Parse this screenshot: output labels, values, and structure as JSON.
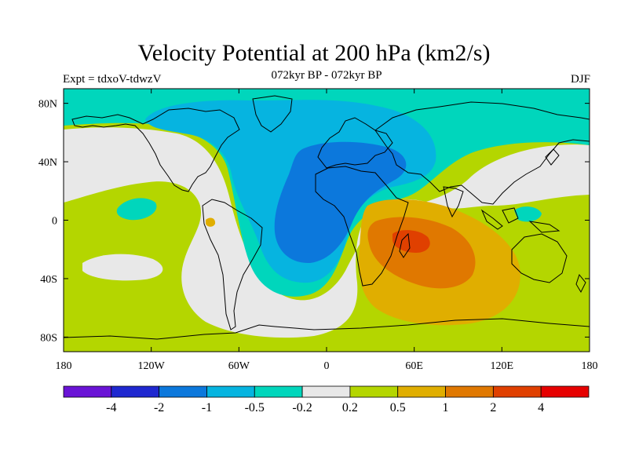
{
  "header": {
    "title": "Velocity Potential at 200 hPa (km2/s)",
    "subtitle_center": "072kyr BP - 072kyr BP",
    "subtitle_left": "Expt = tdxoV-tdwzV",
    "subtitle_right": "DJF"
  },
  "map": {
    "projection": "cylindrical equidistant",
    "lon_range": [
      -180,
      180
    ],
    "lat_range": [
      -90,
      90
    ],
    "x_ticks": [
      {
        "lon": -180,
        "label": "180"
      },
      {
        "lon": -120,
        "label": "120W"
      },
      {
        "lon": -60,
        "label": "60W"
      },
      {
        "lon": 0,
        "label": "0"
      },
      {
        "lon": 60,
        "label": "60E"
      },
      {
        "lon": 120,
        "label": "120E"
      },
      {
        "lon": 180,
        "label": "180"
      }
    ],
    "y_ticks": [
      {
        "lat": 80,
        "label": "80N"
      },
      {
        "lat": 40,
        "label": "40N"
      },
      {
        "lat": 0,
        "label": "0"
      },
      {
        "lat": -40,
        "label": "40S"
      },
      {
        "lat": -80,
        "label": "80S"
      }
    ]
  },
  "colorbar": {
    "colors": [
      "#6a14d6",
      "#1f28d0",
      "#0c78dc",
      "#06b4e0",
      "#00d6bc",
      "#e8e8e8",
      "#b4d600",
      "#e0ae00",
      "#e07800",
      "#e04000",
      "#e60000"
    ],
    "labels": [
      "-4",
      "-2",
      "-1",
      "-0.5",
      "-0.2",
      "0.2",
      "0.5",
      "1",
      "2",
      "4"
    ]
  }
}
